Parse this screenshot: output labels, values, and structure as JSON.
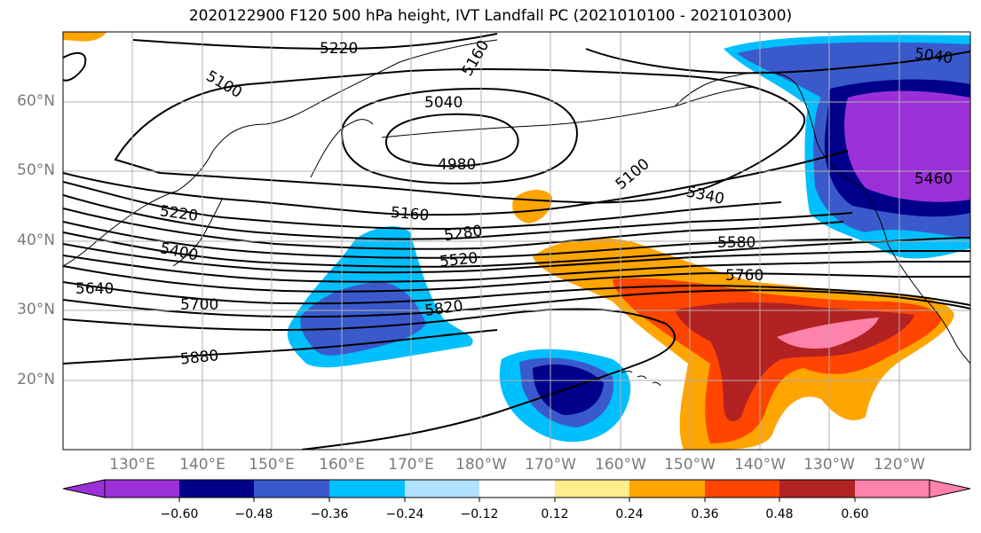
{
  "title": "2020122900 F120 500 hPa height, IVT Landfall PC (2021010100 - 2021010300)",
  "map": {
    "lat_labels": [
      "60°N",
      "50°N",
      "40°N",
      "30°N",
      "20°N"
    ],
    "lon_labels": [
      "130°E",
      "140°E",
      "150°E",
      "160°E",
      "170°E",
      "180°W",
      "170°W",
      "160°W",
      "150°W",
      "140°W",
      "130°W",
      "120°W"
    ],
    "contour_labels": [
      "5220",
      "5160",
      "5040",
      "5100",
      "4980",
      "5100",
      "5340",
      "5220",
      "5160",
      "5280",
      "5400",
      "5520",
      "5580",
      "5640",
      "5760",
      "5700",
      "5820",
      "5880",
      "5460",
      "5040"
    ],
    "contour_color": "#000000",
    "grid_color": "#b0b0b0"
  },
  "colorbar": {
    "ticks": [
      "−0.60",
      "−0.48",
      "−0.36",
      "−0.24",
      "−0.12",
      "0.12",
      "0.24",
      "0.36",
      "0.48",
      "0.60"
    ],
    "colors": [
      "#9b30d9",
      "#00008b",
      "#3a5acc",
      "#00bfff",
      "#b0e2ff",
      "#ffffff",
      "#ffec8b",
      "#ffa500",
      "#ff4500",
      "#b22222",
      "#ff82ab"
    ]
  }
}
